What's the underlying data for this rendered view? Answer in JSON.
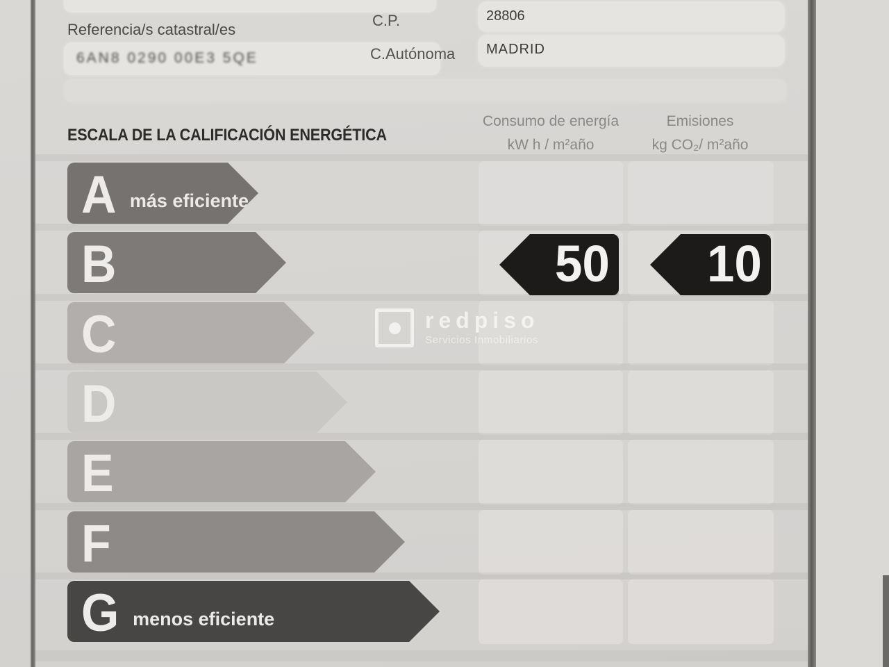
{
  "document": {
    "fields": {
      "ref_label": "Referencia/s catastral/es",
      "ref_value": "6AN8 0290 00E3 5QE",
      "cp_label": "C.P.",
      "cp_value": "28806",
      "ca_label": "C.Autónoma",
      "ca_value": "MADRID"
    },
    "scale": {
      "title": "ESCALA DE LA CALIFICACIÓN ENERGÉTICA",
      "columns": [
        {
          "line1": "Consumo de energía",
          "line2": "kW h / m²año"
        },
        {
          "line1": "Emisiones",
          "line2": "kg CO₂/ m²año"
        }
      ],
      "rows": [
        {
          "letter": "A",
          "label": "más eficiente",
          "color": "#757270",
          "arrow_width": 275
        },
        {
          "letter": "B",
          "label": "",
          "color": "#7d7a77",
          "arrow_width": 315
        },
        {
          "letter": "C",
          "label": "",
          "color": "#b1aeab",
          "arrow_width": 356
        },
        {
          "letter": "D",
          "label": "",
          "color": "#cac8c5",
          "arrow_width": 403
        },
        {
          "letter": "E",
          "label": "",
          "color": "#a8a5a2",
          "arrow_width": 444
        },
        {
          "letter": "F",
          "label": "",
          "color": "#8d8a87",
          "arrow_width": 486
        },
        {
          "letter": "G",
          "label": "menos eficiente",
          "color": "#484644",
          "arrow_width": 536
        }
      ],
      "rating_row": "B",
      "ratings": {
        "consumo": "50",
        "emisiones": "10"
      },
      "badge_color": "#1c1b1a"
    },
    "watermark": {
      "brand": "redpiso",
      "tagline": "Servicios Inmobiliarios"
    }
  }
}
